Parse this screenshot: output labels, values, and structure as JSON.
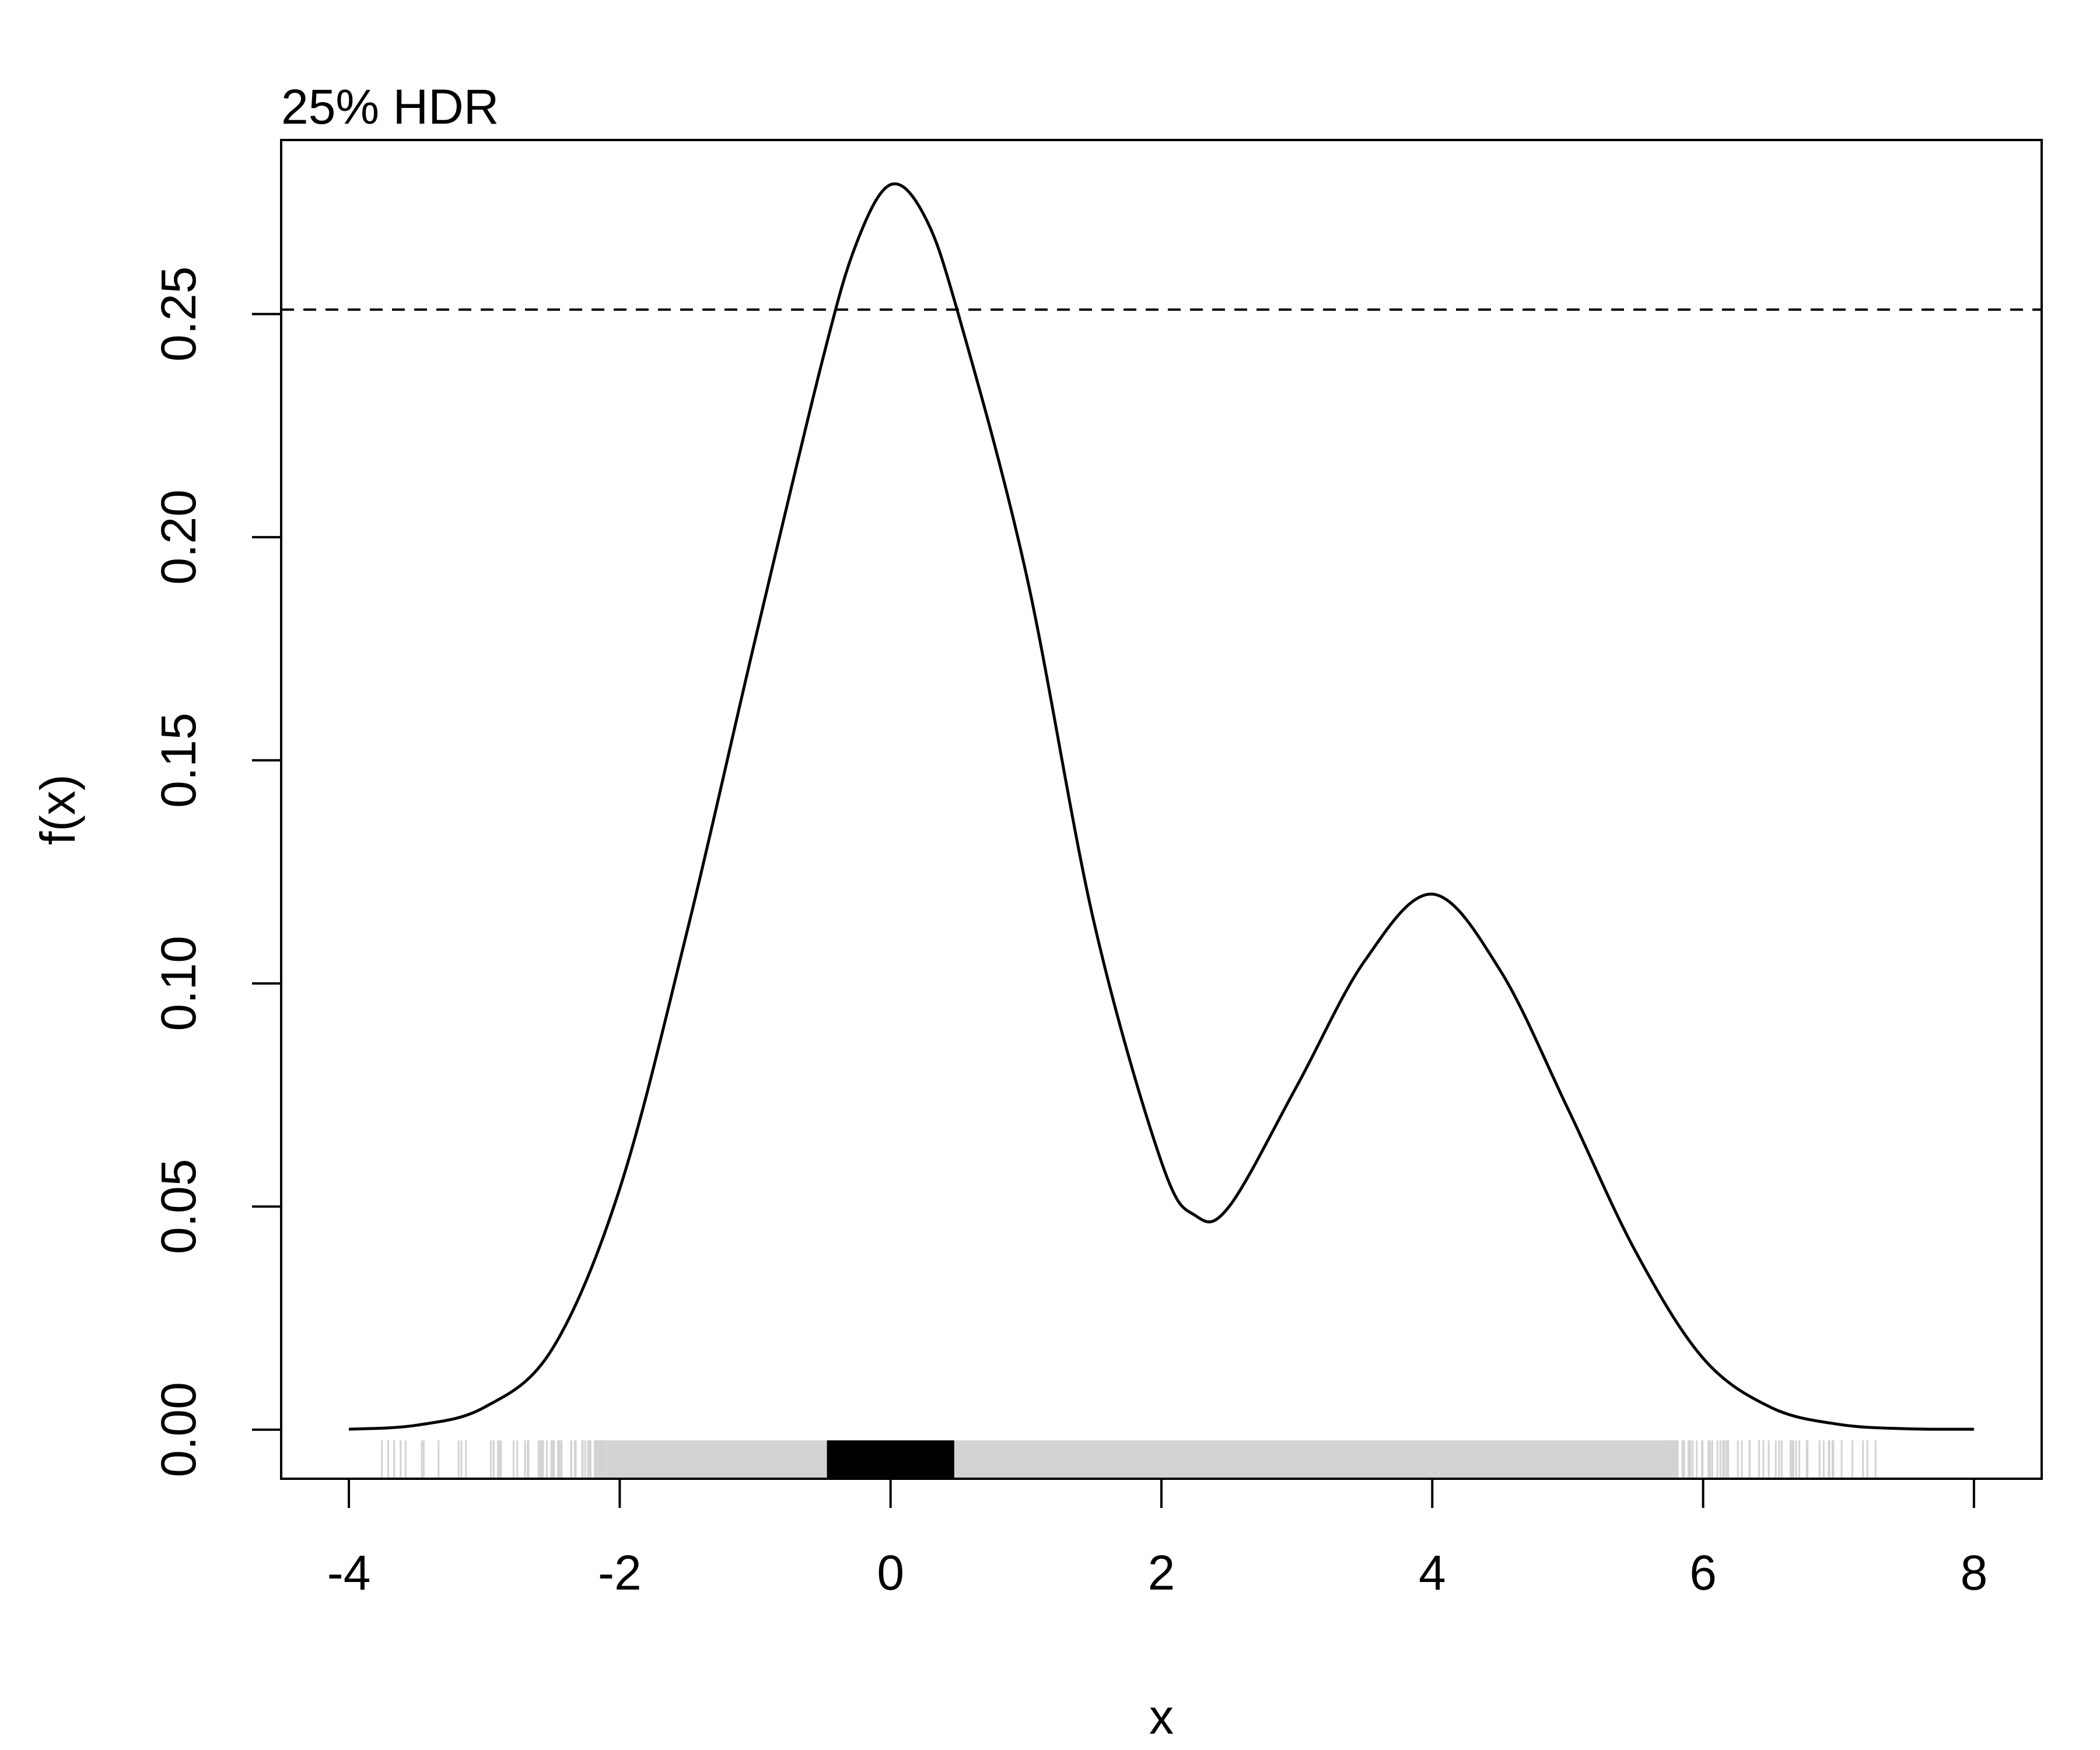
{
  "chart_data": {
    "type": "line",
    "title": "25% HDR",
    "xlabel": "x",
    "ylabel": "f(x)",
    "xlim": [
      -4.5,
      8.5
    ],
    "ylim": [
      -0.011,
      0.289
    ],
    "xticks": [
      -4,
      -2,
      0,
      2,
      4,
      6,
      8
    ],
    "xtick_labels": [
      "-4",
      "-2",
      "0",
      "2",
      "4",
      "6",
      "8"
    ],
    "yticks": [
      0,
      0.05,
      0.1,
      0.15,
      0.2,
      0.25
    ],
    "ytick_labels": [
      "0.00",
      "0.05",
      "0.10",
      "0.15",
      "0.20",
      "0.25"
    ],
    "grid": false,
    "density": {
      "x": [
        -4,
        -3.5,
        -3,
        -2.5,
        -2,
        -1.5,
        -1,
        -0.5,
        -0.25,
        0,
        0.25,
        0.5,
        1,
        1.5,
        2,
        2.25,
        2.5,
        3,
        3.5,
        4,
        4.5,
        5,
        5.5,
        6,
        6.5,
        7,
        7.5,
        8
      ],
      "y": [
        0.0001,
        0.001,
        0.005,
        0.018,
        0.054,
        0.112,
        0.177,
        0.24,
        0.266,
        0.279,
        0.272,
        0.25,
        0.192,
        0.114,
        0.06,
        0.048,
        0.05,
        0.077,
        0.105,
        0.12,
        0.103,
        0.072,
        0.04,
        0.016,
        0.005,
        0.0012,
        0.0002,
        0.0001
      ]
    },
    "hdr_density_threshold": 0.251,
    "hdr_level_percent": 25,
    "hdr_interval": [
      -0.47,
      0.47
    ],
    "rug_extent": [
      -3.8,
      7.3
    ],
    "colors": {
      "curve": "#000000",
      "threshold_line": "#000000",
      "hdr_fill": "#000000",
      "rug": "#d3d3d3"
    }
  }
}
